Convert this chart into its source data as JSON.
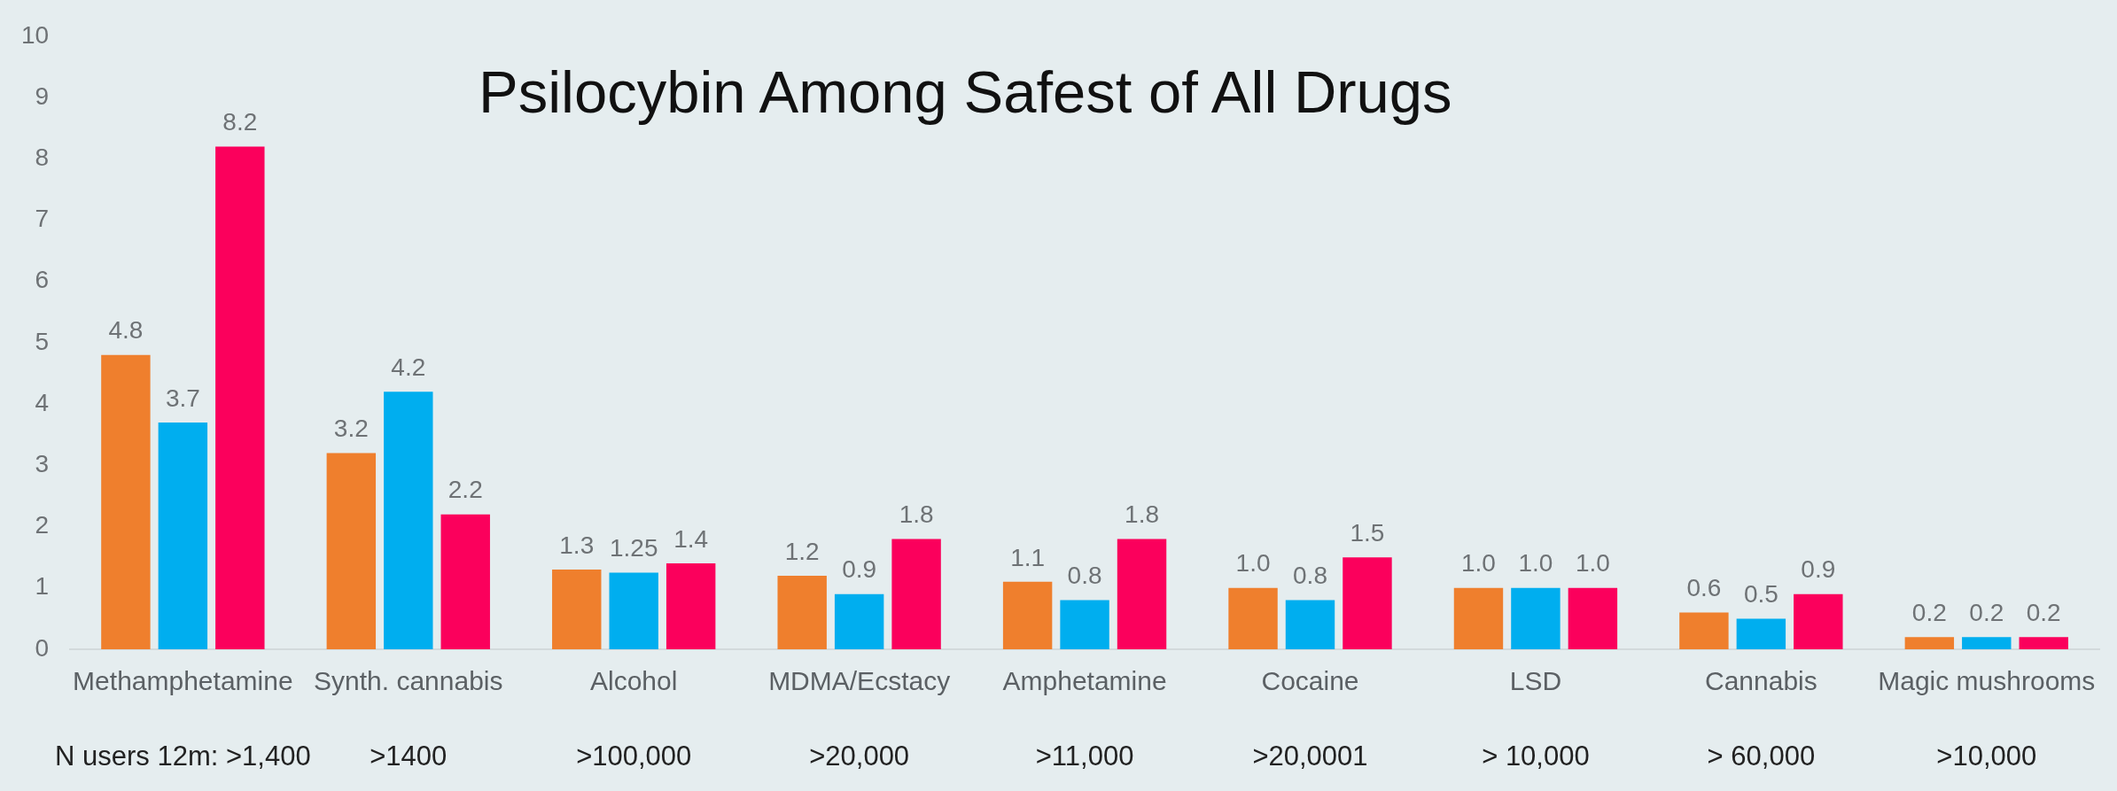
{
  "chart_data": {
    "type": "bar",
    "title": "Psilocybin Among Safest of All Drugs",
    "categories": [
      "Methamphetamine",
      "Synth. cannabis",
      "Alcohol",
      "MDMA/Ecstacy",
      "Amphetamine",
      "Cocaine",
      "LSD",
      "Cannabis",
      "Magic mushrooms"
    ],
    "series": [
      {
        "color": "#ef7f2d",
        "values": [
          4.8,
          3.2,
          1.3,
          1.2,
          1.1,
          1.0,
          1.0,
          0.6,
          0.2
        ],
        "value_labels": [
          "4.8",
          "3.2",
          "1.3",
          "1.2",
          "1.1",
          "1.0",
          "1.0",
          "0.6",
          "0.2"
        ]
      },
      {
        "color": "#00aeef",
        "values": [
          3.7,
          4.2,
          1.25,
          0.9,
          0.8,
          0.8,
          1.0,
          0.5,
          0.2
        ],
        "value_labels": [
          "3.7",
          "4.2",
          "1.25",
          "0.9",
          "0.8",
          "0.8",
          "1.0",
          "0.5",
          "0.2"
        ]
      },
      {
        "color": "#fb005c",
        "values": [
          8.2,
          2.2,
          1.4,
          1.8,
          1.8,
          1.5,
          1.0,
          0.9,
          0.2
        ],
        "value_labels": [
          "8.2",
          "2.2",
          "1.4",
          "1.8",
          "1.8",
          "1.5",
          "1.0",
          "0.9",
          "0.2"
        ]
      }
    ],
    "ylim": [
      0,
      10
    ],
    "yticks": [
      0,
      1,
      2,
      3,
      4,
      5,
      6,
      7,
      8,
      9,
      10
    ],
    "grid": false,
    "legend": false,
    "annotations": [
      "N users 12m: >1,400",
      ">1400",
      ">100,000",
      ">20,000",
      ">11,000",
      ">20,0001",
      "> 10,000",
      "> 60,000",
      ">10,000"
    ]
  }
}
